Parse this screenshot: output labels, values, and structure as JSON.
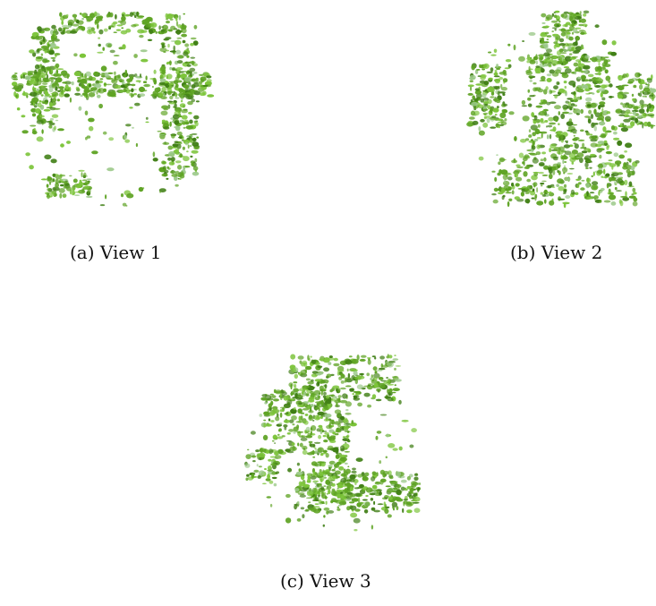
{
  "figure": {
    "panels": [
      {
        "id": "a",
        "caption": "(a) View 1",
        "view": "View 1"
      },
      {
        "id": "b",
        "caption": "(b) View 2",
        "view": "View 2"
      },
      {
        "id": "c",
        "caption": "(c) View 3",
        "view": "View 3"
      }
    ],
    "colors": {
      "green_dark": "#3f7e14",
      "green_mid": "#5ea323",
      "green_light": "#7cc43a",
      "green_faded": "#9cc98a",
      "background": "#ffffff"
    }
  }
}
